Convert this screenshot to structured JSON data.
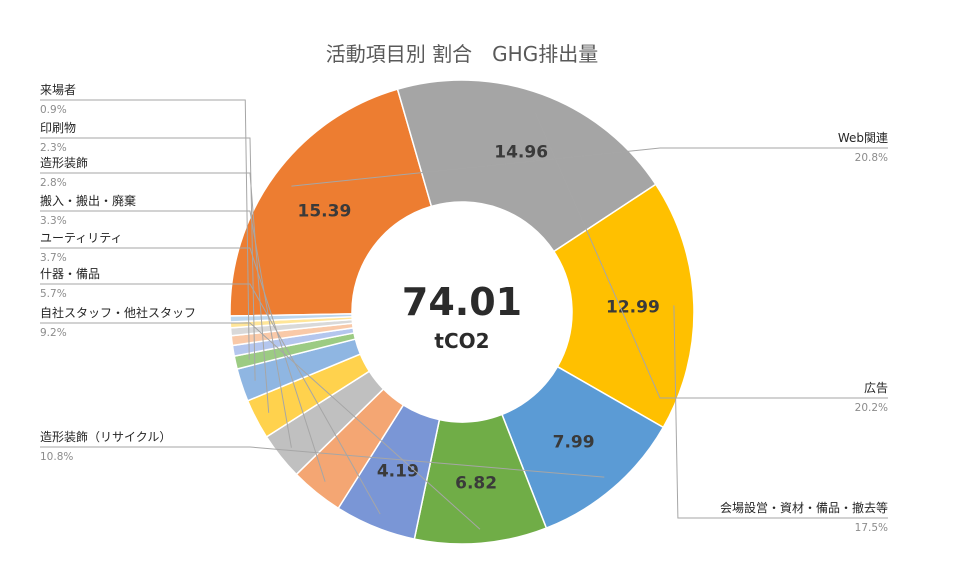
{
  "chart_data": {
    "type": "pie",
    "title": "活動項目別 割合　GHG排出量",
    "center_total": "74.01",
    "center_unit": "tCO2",
    "slices": [
      {
        "name": "Web関連",
        "value": 15.39,
        "percent": "20.8%",
        "value_label": "15.39",
        "color": "#ED7D31",
        "side": "right"
      },
      {
        "name": "広告",
        "value": 14.96,
        "percent": "20.2%",
        "value_label": "14.96",
        "color": "#A5A5A5",
        "side": "right"
      },
      {
        "name": "会場設営・資材・備品・撤去等",
        "value": 12.99,
        "percent": "17.5%",
        "value_label": "12.99",
        "color": "#FFC000",
        "side": "right"
      },
      {
        "name": "造形装飾（リサイクル）",
        "value": 7.99,
        "percent": "10.8%",
        "value_label": "7.99",
        "color": "#5B9BD5",
        "side": "left"
      },
      {
        "name": "自社スタッフ・他社スタッフ",
        "value": 6.82,
        "percent": "9.2%",
        "value_label": "6.82",
        "color": "#70AD47",
        "side": "left"
      },
      {
        "name": "什器・備品",
        "value": 4.19,
        "percent": "5.7%",
        "value_label": "4.19",
        "color": "#7A96D6",
        "side": "left"
      },
      {
        "name": "ユーティリティ",
        "value": 2.74,
        "percent": "3.7%",
        "value_label": "",
        "color": "#F4A673",
        "side": "left"
      },
      {
        "name": "搬入・搬出・廃棄",
        "value": 2.44,
        "percent": "3.3%",
        "value_label": "",
        "color": "#C0C0C0",
        "side": "left"
      },
      {
        "name": "造形装飾",
        "value": 2.07,
        "percent": "2.8%",
        "value_label": "",
        "color": "#FFD24D",
        "side": "left"
      },
      {
        "name": "印刷物",
        "value": 1.7,
        "percent": "2.3%",
        "value_label": "",
        "color": "#8FB6E2",
        "side": "left"
      },
      {
        "name": "来場者",
        "value": 0.67,
        "percent": "0.9%",
        "value_label": "",
        "color": "#9CCB83",
        "side": "left"
      },
      {
        "name": "",
        "value": 0.55,
        "percent": "",
        "value_label": "",
        "color": "#B4C6EE",
        "side": "none"
      },
      {
        "name": "",
        "value": 0.5,
        "percent": "",
        "value_label": "",
        "color": "#F9C9A8",
        "side": "none"
      },
      {
        "name": "",
        "value": 0.4,
        "percent": "",
        "value_label": "",
        "color": "#D9D9D9",
        "side": "none"
      },
      {
        "name": "",
        "value": 0.3,
        "percent": "",
        "value_label": "",
        "color": "#FFE699",
        "side": "none"
      },
      {
        "name": "",
        "value": 0.3,
        "percent": "",
        "value_label": "",
        "color": "#BDD7EE",
        "side": "none"
      }
    ]
  }
}
